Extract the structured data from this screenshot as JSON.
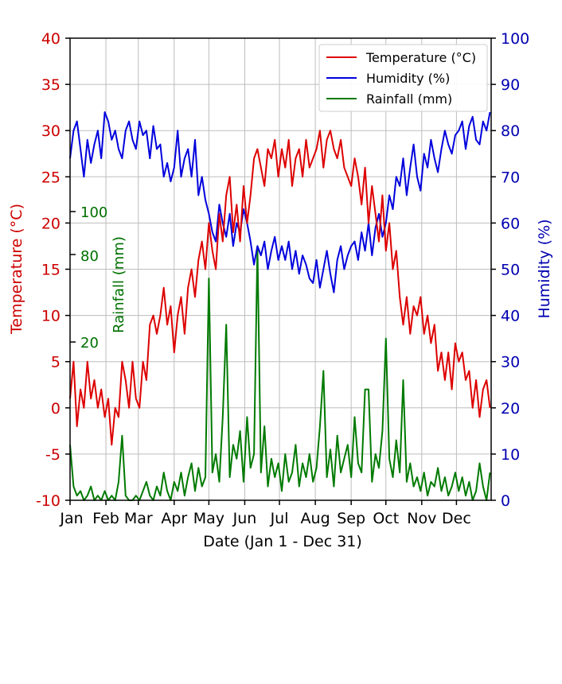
{
  "chart_data": {
    "type": "line",
    "xlabel": "Date (Jan 1 - Dec 31)",
    "x_tick_labels": [
      "Jan",
      "Feb",
      "Mar",
      "Apr",
      "May",
      "Jun",
      "Jul",
      "Aug",
      "Sep",
      "Oct",
      "Nov",
      "Dec"
    ],
    "x_tick_days": [
      1,
      32,
      60,
      91,
      121,
      152,
      182,
      213,
      244,
      274,
      305,
      335
    ],
    "xlim": [
      1,
      365
    ],
    "x_days_start": 1,
    "x_days_step": 3,
    "grid": true,
    "legend_position": "top-right",
    "left_axis": {
      "label": "Temperature (°C)",
      "ylim": [
        -10,
        40
      ],
      "ticks": [
        -10,
        -5,
        0,
        5,
        10,
        15,
        20,
        25,
        30,
        35,
        40
      ],
      "color": "#cc0000"
    },
    "right_axis": {
      "label": "Humidity (%)",
      "ylim": [
        0,
        100
      ],
      "ticks": [
        0,
        10,
        20,
        30,
        40,
        50,
        60,
        70,
        80,
        90,
        100
      ],
      "color": "#0000b0"
    },
    "rain_axis": {
      "label": "Rainfall (mm)",
      "tick_labels": [
        "100",
        "80",
        "20"
      ],
      "color": "#007000"
    },
    "series": [
      {
        "name": "Temperature (°C)",
        "axis": "left",
        "color": "#dd0000",
        "values": [
          1,
          5,
          -2,
          2,
          0,
          5,
          1,
          3,
          0,
          2,
          -1,
          1,
          -4,
          0,
          -1,
          5,
          3,
          0,
          5,
          1,
          0,
          5,
          3,
          9,
          10,
          8,
          10,
          13,
          9,
          11,
          6,
          10,
          12,
          8,
          13,
          15,
          12,
          16,
          18,
          15,
          20,
          17,
          15,
          21,
          18,
          23,
          25,
          19,
          22,
          18,
          24,
          20,
          23,
          27,
          28,
          26,
          24,
          28,
          27,
          29,
          25,
          28,
          26,
          29,
          24,
          27,
          28,
          25,
          29,
          26,
          27,
          28,
          30,
          26,
          29,
          30,
          28,
          27,
          29,
          26,
          25,
          24,
          27,
          25,
          22,
          26,
          20,
          24,
          21,
          18,
          23,
          17,
          20,
          15,
          17,
          12,
          9,
          12,
          8,
          11,
          10,
          12,
          8,
          10,
          7,
          9,
          4,
          6,
          3,
          6,
          2,
          7,
          5,
          6,
          3,
          4,
          0,
          3,
          -1,
          2,
          3,
          0
        ]
      },
      {
        "name": "Humidity (%)",
        "axis": "right",
        "color": "#0000dd",
        "values": [
          74,
          80,
          82,
          76,
          70,
          78,
          73,
          77,
          80,
          74,
          84,
          82,
          78,
          80,
          76,
          74,
          80,
          82,
          78,
          76,
          82,
          79,
          80,
          74,
          81,
          76,
          77,
          70,
          73,
          69,
          72,
          80,
          70,
          74,
          76,
          70,
          78,
          66,
          70,
          65,
          62,
          58,
          56,
          64,
          60,
          57,
          62,
          55,
          60,
          58,
          63,
          60,
          56,
          51,
          55,
          53,
          56,
          50,
          54,
          57,
          52,
          55,
          52,
          56,
          50,
          54,
          49,
          53,
          51,
          48,
          47,
          52,
          46,
          50,
          54,
          49,
          45,
          52,
          55,
          50,
          53,
          55,
          56,
          52,
          58,
          54,
          60,
          53,
          59,
          62,
          57,
          60,
          66,
          63,
          70,
          68,
          74,
          66,
          72,
          77,
          70,
          67,
          75,
          72,
          78,
          74,
          71,
          76,
          80,
          77,
          75,
          79,
          80,
          82,
          76,
          81,
          83,
          78,
          77,
          82,
          80,
          84
        ]
      },
      {
        "name": "Rainfall (mm)",
        "axis": "rain",
        "color": "#007a00",
        "values": [
          12,
          3,
          1,
          2,
          0,
          1,
          3,
          0,
          1,
          0,
          2,
          0,
          1,
          0,
          4,
          14,
          1,
          0,
          0,
          1,
          0,
          2,
          4,
          1,
          0,
          3,
          1,
          6,
          2,
          0,
          4,
          2,
          6,
          1,
          5,
          8,
          2,
          7,
          3,
          5,
          48,
          6,
          10,
          4,
          18,
          38,
          5,
          12,
          9,
          15,
          4,
          18,
          7,
          10,
          55,
          6,
          16,
          3,
          9,
          5,
          8,
          2,
          10,
          4,
          6,
          12,
          3,
          8,
          5,
          10,
          4,
          7,
          16,
          28,
          5,
          11,
          3,
          14,
          6,
          9,
          12,
          5,
          18,
          8,
          6,
          24,
          24,
          4,
          10,
          7,
          15,
          35,
          9,
          5,
          13,
          6,
          26,
          4,
          8,
          3,
          5,
          2,
          6,
          1,
          4,
          3,
          7,
          2,
          5,
          1,
          3,
          6,
          2,
          5,
          1,
          4,
          0,
          2,
          8,
          3,
          0,
          6
        ]
      }
    ]
  }
}
